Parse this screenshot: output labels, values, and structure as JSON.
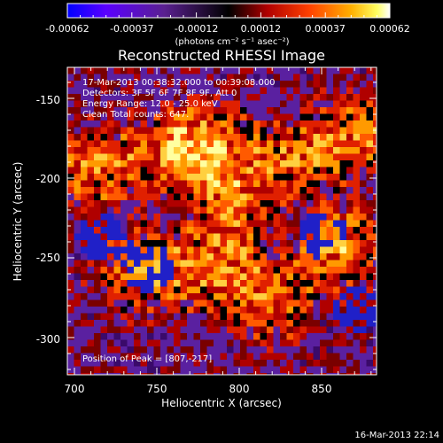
{
  "colorbar": {
    "tick_labels": [
      "-0.00062",
      "-0.00037",
      "-0.00012",
      "0.00012",
      "0.00037",
      "0.00062"
    ],
    "units": "(photons cm⁻² s⁻¹ asec⁻²)",
    "colors": [
      "#0000ff",
      "#6a00ff",
      "#5a209e",
      "#000000",
      "#b00000",
      "#ff4000",
      "#ffa000",
      "#ffff40",
      "#ffffff"
    ]
  },
  "title": "Reconstructed RHESSI Image",
  "info": {
    "line1": "17-Mar-2013 00:38:32.000 to 00:39:08.000",
    "line2": "Detectors: 3F 5F 6F 7F 8F 9F, Att 0",
    "line3": "Energy Range: 12.0 - 25.0 keV",
    "line4": "Clean    Total counts: 647.",
    "peak": "Position of Peak = [807,-217]"
  },
  "axes": {
    "xlabel": "Heliocentric X (arcsec)",
    "ylabel": "Heliocentric Y (arcsec)",
    "xticks": [
      700,
      750,
      800,
      850
    ],
    "yticks": [
      -150,
      -200,
      -250,
      -300
    ],
    "xlim": [
      697,
      885
    ],
    "ylim": [
      -323,
      -128
    ]
  },
  "footer": "16-Mar-2013 22:14"
}
